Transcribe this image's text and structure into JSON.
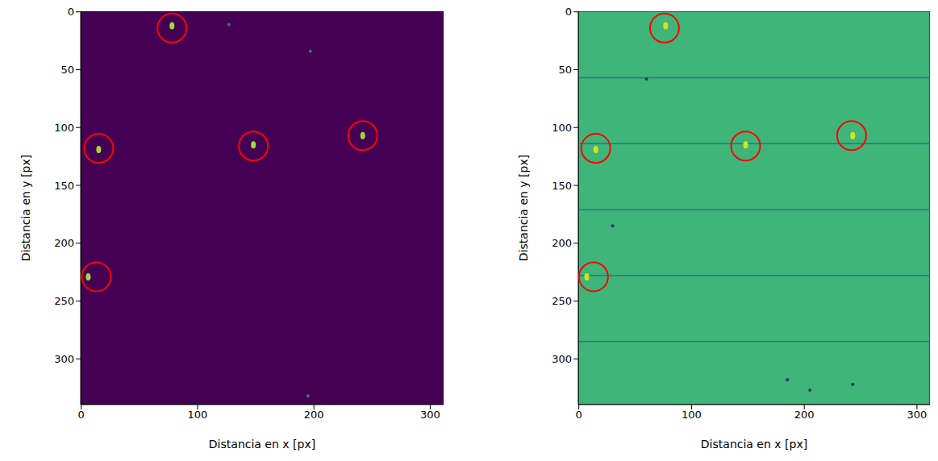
{
  "chart_data": [
    {
      "type": "image",
      "color": "#440154",
      "x_label": "Distancia en x [px]",
      "y_label": "Distancia en y [px]",
      "xlim": [
        -0.5,
        311.5
      ],
      "ylim": [
        339.5,
        -0.5
      ],
      "xticks": [
        0,
        100,
        200,
        300
      ],
      "yticks": [
        0,
        50,
        100,
        150,
        200,
        250,
        300
      ],
      "series": [
        {
          "marker": "ellipse",
          "color": "#a0da39",
          "x": [
            78,
            15,
            148,
            242,
            6
          ],
          "y": [
            12,
            119,
            115,
            107,
            229
          ]
        },
        {
          "marker": "dot",
          "color": "#2a788e",
          "x": [
            127,
            197,
            195
          ],
          "y": [
            11,
            34,
            332
          ]
        },
        {
          "marker": "ring",
          "color": "#ff0000",
          "x": [
            78,
            15,
            148,
            242,
            13
          ],
          "y": [
            14,
            118,
            116,
            107,
            229
          ]
        }
      ]
    },
    {
      "type": "image",
      "color": "#3fb57a",
      "x_label": "Distancia en x [px]",
      "y_label": "Distancia en y [px]",
      "xlim": [
        -0.5,
        311.5
      ],
      "ylim": [
        339.5,
        -0.5
      ],
      "xticks": [
        0,
        100,
        200,
        300
      ],
      "yticks": [
        0,
        50,
        100,
        150,
        200,
        250,
        300
      ],
      "lines": {
        "color": "#2c728e",
        "y": [
          57,
          114,
          171,
          228,
          285
        ]
      },
      "series": [
        {
          "marker": "dot",
          "color": "#3b2a7a",
          "x": [
            60,
            243,
            205,
            185,
            30
          ],
          "y": [
            58,
            322,
            327,
            318,
            185
          ]
        },
        {
          "marker": "ellipse",
          "color": "#d8e219",
          "x": [
            77,
            15,
            148,
            243,
            7
          ],
          "y": [
            12,
            119,
            115,
            107,
            229
          ]
        },
        {
          "marker": "ring",
          "color": "#ff0000",
          "x": [
            76,
            15,
            148,
            242,
            13
          ],
          "y": [
            14,
            118,
            116,
            107,
            229
          ]
        }
      ]
    }
  ]
}
